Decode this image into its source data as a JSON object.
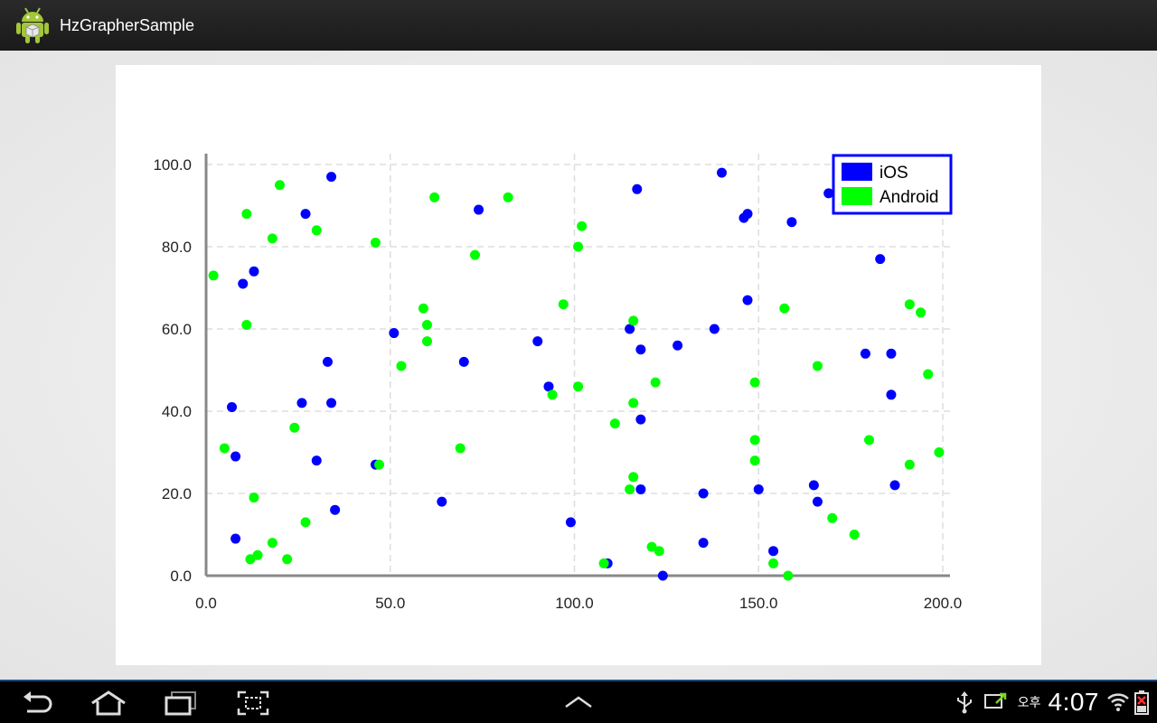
{
  "app": {
    "title": "HzGrapherSample"
  },
  "icons": {
    "app": "android-robot-icon",
    "back": "back-icon",
    "home": "home-icon",
    "recent": "recent-apps-icon",
    "screenshot": "screenshot-icon",
    "menu": "chevron-up-icon",
    "usb": "usb-icon",
    "cast": "screen-mirroring-icon",
    "wifi": "wifi-icon",
    "battery": "battery-icon"
  },
  "status": {
    "ampm": "오후",
    "time": "4:07"
  },
  "chart_data": {
    "type": "scatter",
    "xlim": [
      0,
      200
    ],
    "ylim": [
      0,
      100
    ],
    "xticks": [
      "0.0",
      "50.0",
      "100.0",
      "150.0",
      "200.0"
    ],
    "yticks": [
      "0.0",
      "20.0",
      "40.0",
      "60.0",
      "80.0",
      "100.0"
    ],
    "grid": true,
    "legend_position": "top-right",
    "series": [
      {
        "name": "iOS",
        "color": "#0000ff",
        "points": [
          [
            7,
            41
          ],
          [
            8,
            29
          ],
          [
            8,
            9
          ],
          [
            10,
            71
          ],
          [
            13,
            74
          ],
          [
            26,
            42
          ],
          [
            27,
            88
          ],
          [
            30,
            28
          ],
          [
            33,
            52
          ],
          [
            34,
            97
          ],
          [
            34,
            42
          ],
          [
            35,
            16
          ],
          [
            46,
            27
          ],
          [
            51,
            59
          ],
          [
            64,
            18
          ],
          [
            70,
            52
          ],
          [
            74,
            89
          ],
          [
            90,
            57
          ],
          [
            93,
            46
          ],
          [
            99,
            13
          ],
          [
            109,
            3
          ],
          [
            115,
            60
          ],
          [
            117,
            94
          ],
          [
            118,
            55
          ],
          [
            118,
            38
          ],
          [
            118,
            21
          ],
          [
            124,
            0
          ],
          [
            128,
            56
          ],
          [
            135,
            20
          ],
          [
            135,
            8
          ],
          [
            138,
            60
          ],
          [
            140,
            98
          ],
          [
            146,
            87
          ],
          [
            147,
            88
          ],
          [
            147,
            67
          ],
          [
            150,
            21
          ],
          [
            154,
            6
          ],
          [
            159,
            86
          ],
          [
            165,
            22
          ],
          [
            166,
            18
          ],
          [
            169,
            93
          ],
          [
            179,
            54
          ],
          [
            183,
            77
          ],
          [
            186,
            54
          ],
          [
            186,
            44
          ],
          [
            187,
            22
          ]
        ]
      },
      {
        "name": "Android",
        "color": "#00ff00",
        "points": [
          [
            2,
            73
          ],
          [
            5,
            31
          ],
          [
            11,
            88
          ],
          [
            11,
            61
          ],
          [
            12,
            4
          ],
          [
            13,
            19
          ],
          [
            14,
            5
          ],
          [
            18,
            82
          ],
          [
            18,
            8
          ],
          [
            20,
            95
          ],
          [
            22,
            4
          ],
          [
            24,
            36
          ],
          [
            27,
            13
          ],
          [
            30,
            84
          ],
          [
            46,
            81
          ],
          [
            47,
            27
          ],
          [
            53,
            51
          ],
          [
            59,
            65
          ],
          [
            60,
            61
          ],
          [
            60,
            57
          ],
          [
            62,
            92
          ],
          [
            69,
            31
          ],
          [
            73,
            78
          ],
          [
            82,
            92
          ],
          [
            94,
            44
          ],
          [
            97,
            66
          ],
          [
            101,
            80
          ],
          [
            101,
            46
          ],
          [
            102,
            85
          ],
          [
            108,
            3
          ],
          [
            111,
            37
          ],
          [
            115,
            21
          ],
          [
            116,
            62
          ],
          [
            116,
            42
          ],
          [
            116,
            24
          ],
          [
            121,
            7
          ],
          [
            122,
            47
          ],
          [
            123,
            6
          ],
          [
            149,
            47
          ],
          [
            149,
            33
          ],
          [
            149,
            28
          ],
          [
            154,
            3
          ],
          [
            157,
            65
          ],
          [
            158,
            0
          ],
          [
            166,
            51
          ],
          [
            170,
            14
          ],
          [
            176,
            10
          ],
          [
            180,
            33
          ],
          [
            191,
            66
          ],
          [
            191,
            27
          ],
          [
            194,
            64
          ],
          [
            196,
            49
          ],
          [
            199,
            30
          ]
        ]
      }
    ]
  }
}
